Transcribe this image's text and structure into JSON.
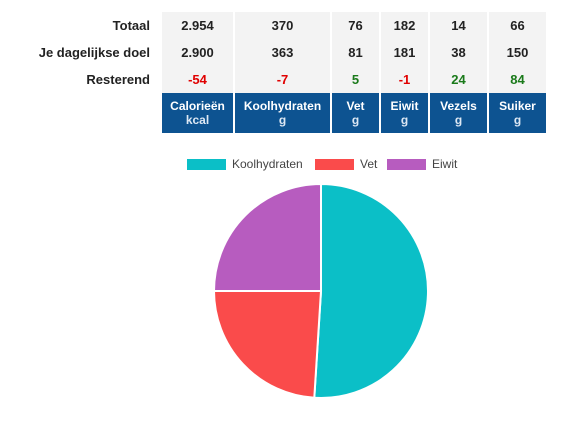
{
  "rows": [
    {
      "label": "Totaal",
      "values": [
        "2.954",
        "370",
        "76",
        "182",
        "14",
        "66"
      ],
      "tones": [
        "",
        "",
        "",
        "",
        "",
        ""
      ]
    },
    {
      "label": "Je dagelijkse doel",
      "values": [
        "2.900",
        "363",
        "81",
        "181",
        "38",
        "150"
      ],
      "tones": [
        "",
        "",
        "",
        "",
        "",
        ""
      ]
    },
    {
      "label": "Resterend",
      "values": [
        "-54",
        "-7",
        "5",
        "-1",
        "24",
        "84"
      ],
      "tones": [
        "neg",
        "neg",
        "pos",
        "neg",
        "pos",
        "pos"
      ]
    }
  ],
  "columns": [
    {
      "name": "Calorieën",
      "unit": "kcal"
    },
    {
      "name": "Koolhydraten",
      "unit": "g"
    },
    {
      "name": "Vet",
      "unit": "g"
    },
    {
      "name": "Eiwit",
      "unit": "g"
    },
    {
      "name": "Vezels",
      "unit": "g"
    },
    {
      "name": "Suiker",
      "unit": "g"
    }
  ],
  "colors": {
    "header_bg": "#0d5391",
    "negative": "#e00000",
    "positive": "#1a7a1a"
  },
  "chart_data": {
    "type": "pie",
    "categories": [
      "Koolhydraten",
      "Vet",
      "Eiwit"
    ],
    "values": [
      51,
      24,
      25
    ],
    "colors": [
      "#0bbfc7",
      "#fa4b4b",
      "#b75cbf"
    ],
    "legend": "top"
  }
}
